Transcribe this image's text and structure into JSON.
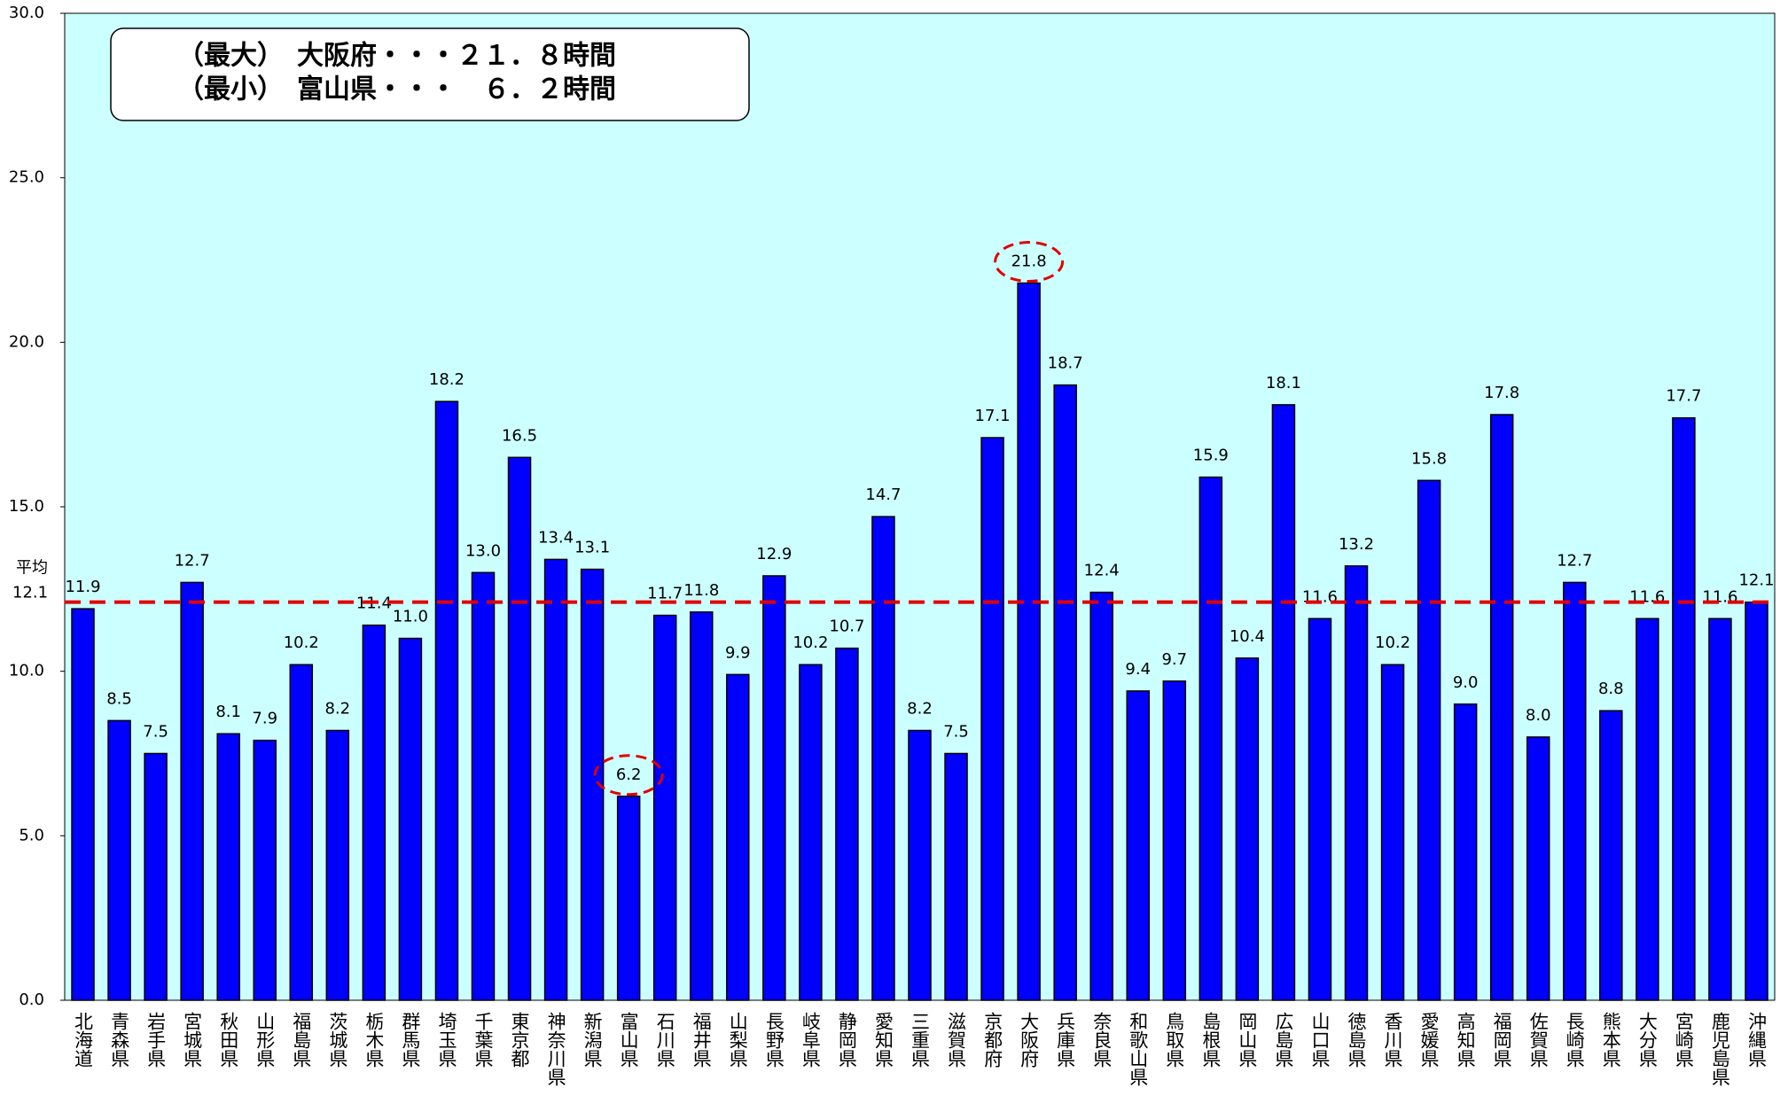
{
  "chart_data": {
    "type": "bar",
    "annotations": [
      "（最大）　大阪府・・・２１．８時間",
      "（最小）　富山県・・・　６．２時間"
    ],
    "categories": [
      "北海道",
      "青森県",
      "岩手県",
      "宮城県",
      "秋田県",
      "山形県",
      "福島県",
      "茨城県",
      "栃木県",
      "群馬県",
      "埼玉県",
      "千葉県",
      "東京都",
      "神奈川県",
      "新潟県",
      "富山県",
      "石川県",
      "福井県",
      "山梨県",
      "長野県",
      "岐阜県",
      "静岡県",
      "愛知県",
      "三重県",
      "滋賀県",
      "京都府",
      "大阪府",
      "兵庫県",
      "奈良県",
      "和歌山県",
      "鳥取県",
      "島根県",
      "岡山県",
      "広島県",
      "山口県",
      "徳島県",
      "香川県",
      "愛媛県",
      "高知県",
      "福岡県",
      "佐賀県",
      "長崎県",
      "熊本県",
      "大分県",
      "宮崎県",
      "鹿児島県",
      "沖縄県"
    ],
    "values": [
      11.9,
      8.5,
      7.5,
      12.7,
      8.1,
      7.9,
      10.2,
      8.2,
      11.4,
      11.0,
      18.2,
      13.0,
      16.5,
      13.4,
      13.1,
      6.2,
      11.7,
      11.8,
      9.9,
      12.9,
      10.2,
      10.7,
      14.7,
      8.2,
      7.5,
      17.1,
      21.8,
      18.7,
      12.4,
      9.4,
      9.7,
      15.9,
      10.4,
      18.1,
      11.6,
      13.2,
      10.2,
      15.8,
      9.0,
      17.8,
      8.0,
      12.7,
      8.8,
      11.6,
      17.7,
      11.6,
      12.1
    ],
    "value_labels": [
      "11.9",
      "8.5",
      "7.5",
      "12.7",
      "8.1",
      "7.9",
      "10.2",
      "8.2",
      "11.4",
      "11.0",
      "18.2",
      "13.0",
      "16.5",
      "13.4",
      "13.1",
      "6.2",
      "11.7",
      "11.8",
      "9.9",
      "12.9",
      "10.2",
      "10.7",
      "14.7",
      "8.2",
      "7.5",
      "17.1",
      "21.8",
      "18.7",
      "12.4",
      "9.4",
      "9.7",
      "15.9",
      "10.4",
      "18.1",
      "11.6",
      "13.2",
      "10.2",
      "15.8",
      "9.0",
      "17.8",
      "8.0",
      "12.7",
      "8.8",
      "11.6",
      "17.7",
      "11.6",
      "12.1"
    ],
    "color": "#0000ff",
    "average": {
      "label": "平均",
      "value": 12.1,
      "color": "#e00000"
    },
    "ylim": [
      0,
      30
    ],
    "yticks": [
      {
        "value": 0,
        "label": "0.0"
      },
      {
        "value": 5,
        "label": "5.0"
      },
      {
        "value": 10,
        "label": "10.0"
      },
      {
        "value": 15,
        "label": "15.0"
      },
      {
        "value": 20,
        "label": "20.0"
      },
      {
        "value": 25,
        "label": "25.0"
      },
      {
        "value": 30,
        "label": "30.0"
      }
    ],
    "grid": false
  }
}
